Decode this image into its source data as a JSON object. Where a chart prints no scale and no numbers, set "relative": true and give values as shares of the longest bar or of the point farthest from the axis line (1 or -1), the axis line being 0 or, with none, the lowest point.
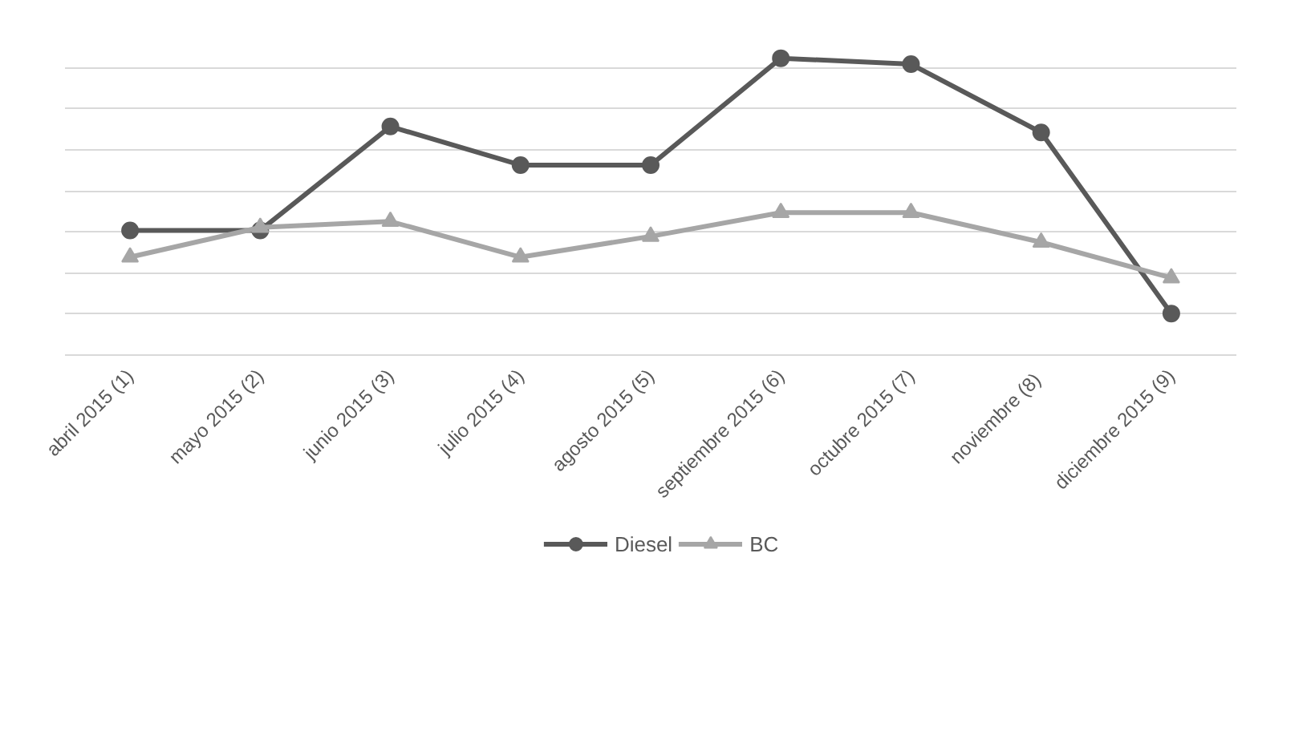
{
  "chart_data": {
    "type": "line",
    "relative": true,
    "categories": [
      "abril 2015 (1)",
      "mayo 2015 (2)",
      "junio 2015 (3)",
      "julio 2015 (4)",
      "agosto 2015 (5)",
      "septiembre 2015 (6)",
      "octubre 2015 (7)",
      "noviembre  (8)",
      "diciembre 2015 (9)"
    ],
    "series": [
      {
        "name": "Diesel",
        "color": "#595959",
        "marker": "circle",
        "values": [
          0.42,
          0.42,
          0.77,
          0.64,
          0.64,
          1,
          0.98,
          0.75,
          0.14
        ]
      },
      {
        "name": "BC",
        "color": "#a6a6a6",
        "marker": "triangle",
        "values": [
          0.33,
          0.43,
          0.45,
          0.33,
          0.4,
          0.48,
          0.48,
          0.38,
          0.26
        ]
      }
    ],
    "grid": "y",
    "legend": "bottom",
    "line_style": "solid"
  }
}
